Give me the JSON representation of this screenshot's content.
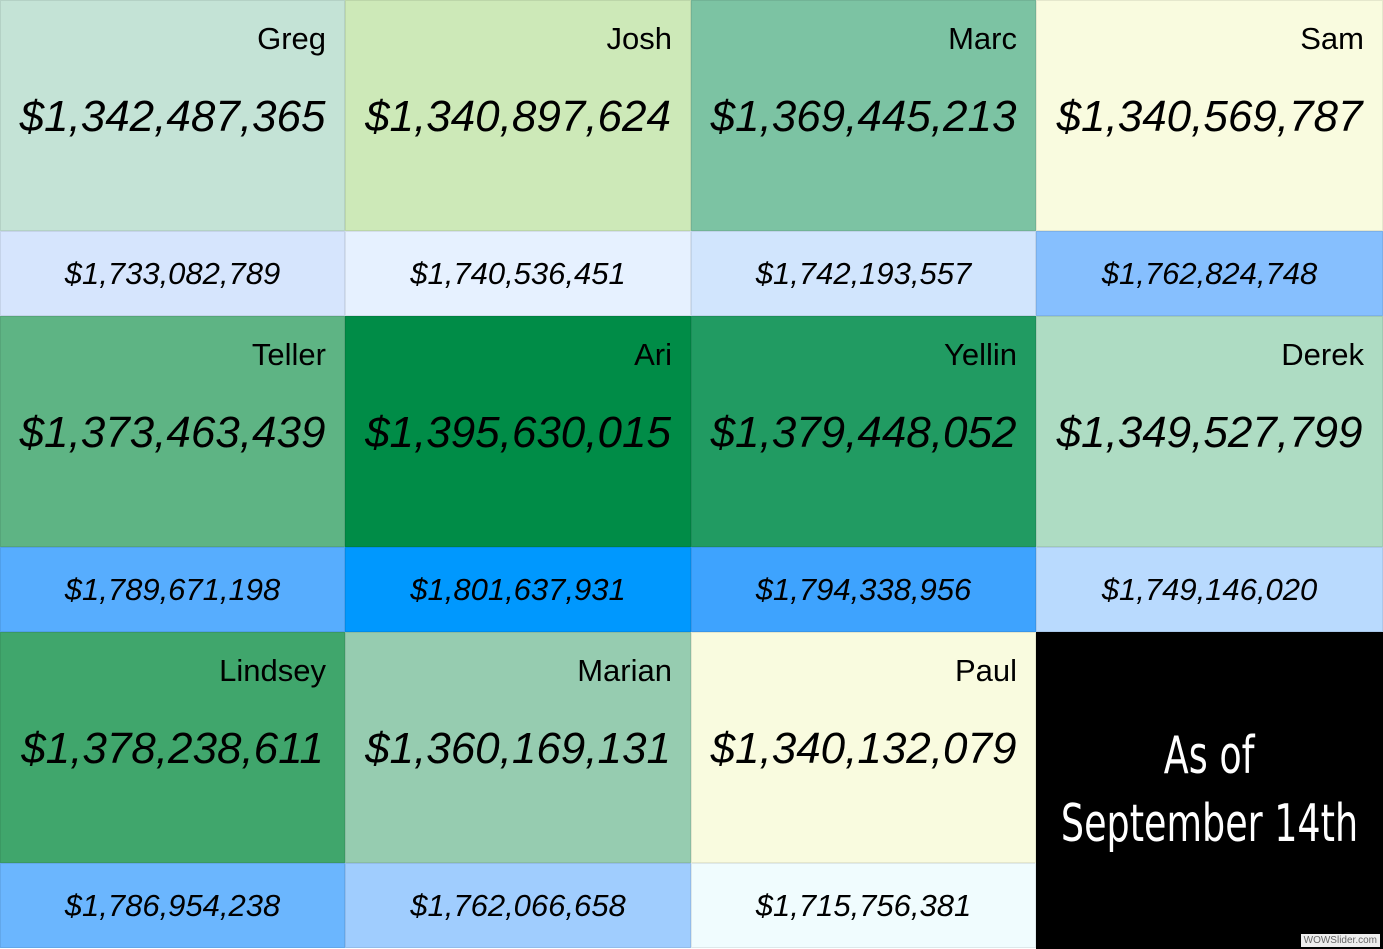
{
  "people": [
    {
      "name": "Greg",
      "main": "$1,342,487,365",
      "sub": "$1,733,082,789",
      "main_color": "#c4e3d6",
      "sub_color": "#d6e5fd"
    },
    {
      "name": "Josh",
      "main": "$1,340,897,624",
      "sub": "$1,740,536,451",
      "main_color": "#cde9b8",
      "sub_color": "#e6f1ff"
    },
    {
      "name": "Marc",
      "main": "$1,369,445,213",
      "sub": "$1,742,193,557",
      "main_color": "#7cc3a3",
      "sub_color": "#d1e5fd"
    },
    {
      "name": "Sam",
      "main": "$1,340,569,787",
      "sub": "$1,762,824,748",
      "main_color": "#f9fbdf",
      "sub_color": "#86bffe"
    },
    {
      "name": "Teller",
      "main": "$1,373,463,439",
      "sub": "$1,789,671,198",
      "main_color": "#5eb484",
      "sub_color": "#57adfe"
    },
    {
      "name": "Ari",
      "main": "$1,395,630,015",
      "sub": "$1,801,637,931",
      "main_color": "#008c47",
      "sub_color": "#0098fe"
    },
    {
      "name": "Yellin",
      "main": "$1,379,448,052",
      "sub": "$1,794,338,956",
      "main_color": "#219b62",
      "sub_color": "#3ea3fe"
    },
    {
      "name": "Derek",
      "main": "$1,349,527,799",
      "sub": "$1,749,146,020",
      "main_color": "#aedcc3",
      "sub_color": "#b9dafe"
    },
    {
      "name": "Lindsey",
      "main": "$1,378,238,611",
      "sub": "$1,786,954,238",
      "main_color": "#40a66c",
      "sub_color": "#6bb6fe"
    },
    {
      "name": "Marian",
      "main": "$1,360,169,131",
      "sub": "$1,762,066,658",
      "main_color": "#96ccb0",
      "sub_color": "#a0cdfe"
    },
    {
      "name": "Paul",
      "main": "$1,340,132,079",
      "sub": "$1,715,756,381",
      "main_color": "#f9fbdf",
      "sub_color": "#f0fcfe"
    }
  ],
  "as_of": {
    "line1": "As of",
    "line2": "September 14th",
    "bg_color": "#000000"
  },
  "watermark": "WOWSlider.com"
}
